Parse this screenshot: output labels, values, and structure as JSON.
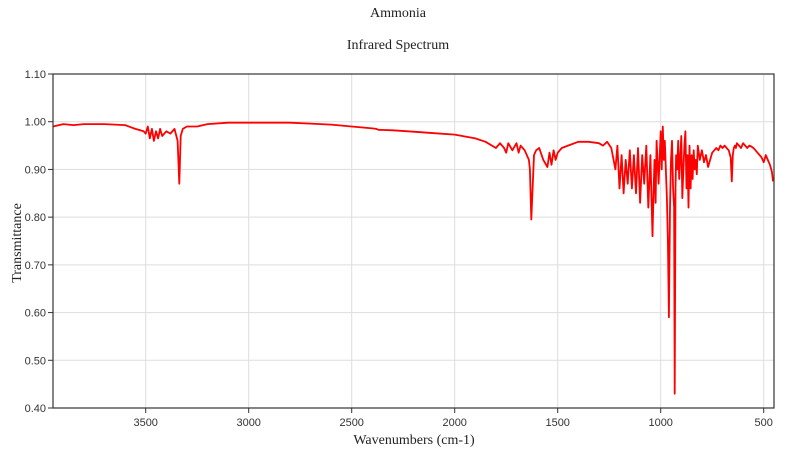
{
  "chart_data": {
    "type": "line",
    "title": "Ammonia",
    "subtitle": "Infrared Spectrum",
    "xlabel": "Wavenumbers (cm-1)",
    "ylabel": "Transmittance",
    "xlim": [
      3950,
      450
    ],
    "ylim": [
      0.4,
      1.1
    ],
    "x_reversed": true,
    "grid": true,
    "xticks": [
      3500,
      3000,
      2500,
      2000,
      1500,
      1000,
      500
    ],
    "yticks": [
      0.4,
      0.5,
      0.6,
      0.7,
      0.8,
      0.9,
      1.0,
      1.1
    ],
    "ytick_labels": [
      "0.40",
      "0.50",
      "0.60",
      "0.70",
      "0.80",
      "0.90",
      "1.00",
      "1.10"
    ],
    "line_color": "#ff0000",
    "series": [
      {
        "x": [
          3950,
          3900,
          3850,
          3800,
          3700,
          3600,
          3550,
          3510,
          3500,
          3490,
          3480,
          3470,
          3460,
          3450,
          3440,
          3430,
          3420,
          3400,
          3380,
          3360,
          3345,
          3337,
          3330,
          3320,
          3300,
          3250,
          3200,
          3100,
          3000,
          2900,
          2800,
          2700,
          2600,
          2500,
          2400,
          2380,
          2370,
          2300,
          2200,
          2100,
          2000,
          1900,
          1850,
          1800,
          1780,
          1760,
          1750,
          1740,
          1720,
          1700,
          1690,
          1680,
          1660,
          1640,
          1635,
          1628,
          1620,
          1615,
          1605,
          1590,
          1570,
          1550,
          1540,
          1530,
          1520,
          1510,
          1500,
          1480,
          1450,
          1400,
          1350,
          1300,
          1280,
          1260,
          1240,
          1220,
          1210,
          1200,
          1190,
          1180,
          1170,
          1160,
          1150,
          1140,
          1130,
          1120,
          1110,
          1100,
          1090,
          1080,
          1070,
          1060,
          1050,
          1040,
          1035,
          1030,
          1025,
          1020,
          1010,
          1000,
          995,
          990,
          985,
          980,
          970,
          965,
          960,
          955,
          950,
          945,
          940,
          935,
          932,
          928,
          925,
          920,
          915,
          910,
          900,
          895,
          890,
          885,
          880,
          875,
          870,
          865,
          860,
          855,
          850,
          845,
          840,
          835,
          830,
          825,
          820,
          810,
          800,
          790,
          780,
          770,
          760,
          750,
          740,
          730,
          720,
          710,
          700,
          690,
          680,
          670,
          660,
          655,
          650,
          645,
          640,
          635,
          630,
          620,
          610,
          600,
          590,
          580,
          570,
          560,
          550,
          540,
          530,
          520,
          510,
          500,
          490,
          480,
          470,
          460,
          455
        ],
        "y": [
          0.99,
          0.995,
          0.993,
          0.995,
          0.995,
          0.993,
          0.985,
          0.98,
          0.975,
          0.99,
          0.965,
          0.985,
          0.96,
          0.98,
          0.965,
          0.985,
          0.97,
          0.98,
          0.975,
          0.985,
          0.96,
          0.87,
          0.97,
          0.985,
          0.99,
          0.99,
          0.995,
          0.998,
          0.998,
          0.998,
          0.998,
          0.996,
          0.994,
          0.99,
          0.986,
          0.985,
          0.983,
          0.982,
          0.979,
          0.976,
          0.973,
          0.965,
          0.958,
          0.945,
          0.955,
          0.945,
          0.935,
          0.955,
          0.94,
          0.955,
          0.935,
          0.95,
          0.94,
          0.92,
          0.9,
          0.795,
          0.88,
          0.93,
          0.94,
          0.945,
          0.92,
          0.905,
          0.935,
          0.91,
          0.94,
          0.92,
          0.935,
          0.945,
          0.95,
          0.958,
          0.958,
          0.955,
          0.95,
          0.958,
          0.945,
          0.9,
          0.95,
          0.86,
          0.93,
          0.85,
          0.92,
          0.87,
          0.94,
          0.86,
          0.93,
          0.85,
          0.945,
          0.83,
          0.93,
          0.87,
          0.95,
          0.82,
          0.93,
          0.76,
          0.85,
          0.92,
          0.83,
          0.96,
          0.87,
          0.98,
          0.9,
          0.99,
          0.92,
          0.96,
          0.84,
          0.75,
          0.59,
          0.82,
          0.92,
          0.96,
          0.86,
          0.82,
          0.43,
          0.86,
          0.93,
          0.9,
          0.96,
          0.88,
          0.97,
          0.84,
          0.9,
          0.95,
          0.98,
          0.86,
          0.93,
          0.82,
          0.95,
          0.86,
          0.93,
          0.88,
          0.94,
          0.9,
          0.92,
          0.89,
          0.95,
          0.92,
          0.94,
          0.915,
          0.93,
          0.905,
          0.92,
          0.935,
          0.94,
          0.945,
          0.94,
          0.95,
          0.945,
          0.95,
          0.945,
          0.94,
          0.925,
          0.875,
          0.93,
          0.945,
          0.95,
          0.945,
          0.955,
          0.95,
          0.945,
          0.955,
          0.95,
          0.945,
          0.95,
          0.948,
          0.945,
          0.94,
          0.935,
          0.93,
          0.925,
          0.915,
          0.93,
          0.92,
          0.91,
          0.895,
          0.875
        ]
      }
    ]
  }
}
